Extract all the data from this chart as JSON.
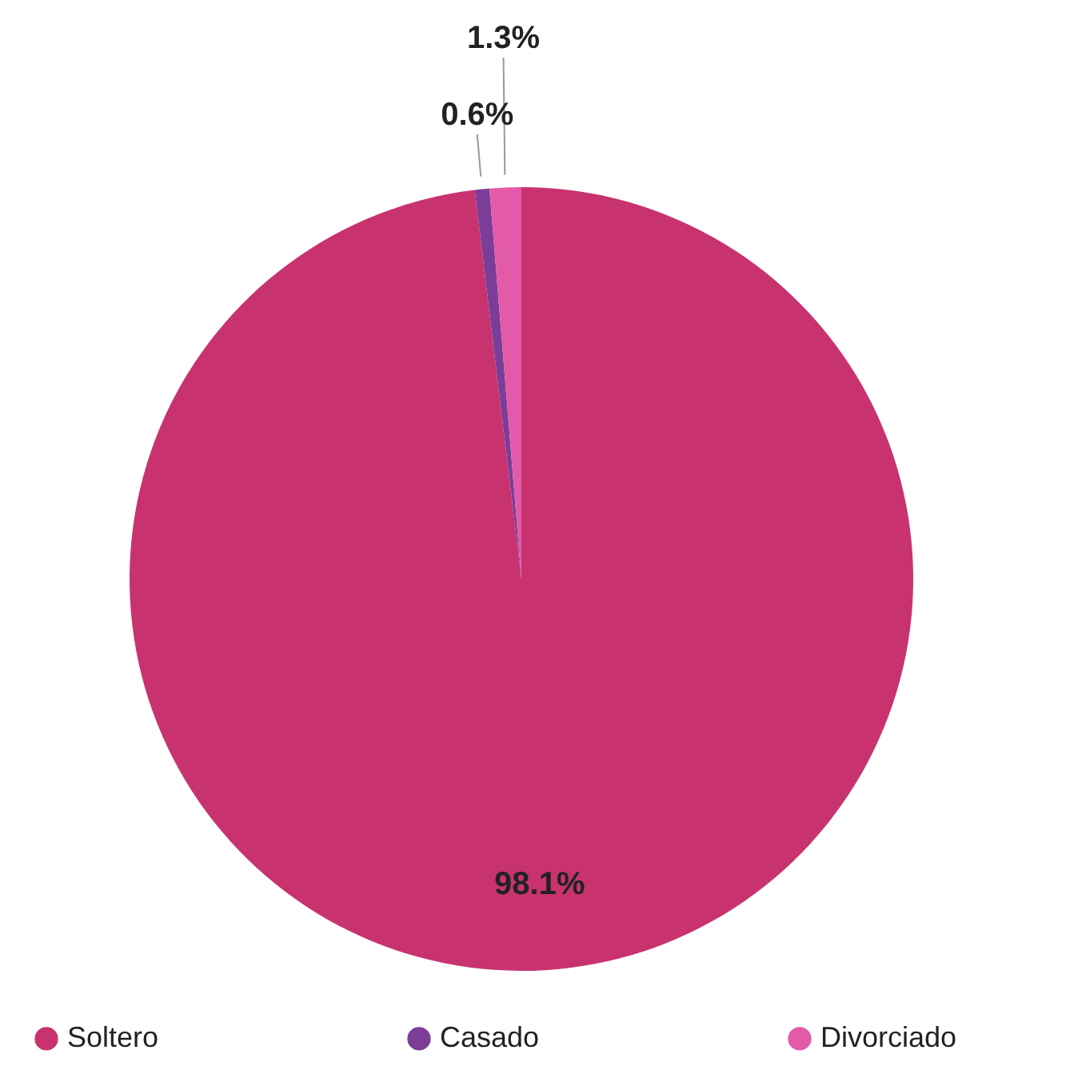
{
  "chart_data": {
    "type": "pie",
    "categories": [
      "Soltero",
      "Casado",
      "Divorciado"
    ],
    "values": [
      98.1,
      0.6,
      1.3
    ],
    "colors": [
      "#c8336f",
      "#7b3d98",
      "#e25aa8"
    ],
    "value_labels": [
      "98.1%",
      "0.6%",
      "1.3%"
    ],
    "legend": "bottom"
  }
}
